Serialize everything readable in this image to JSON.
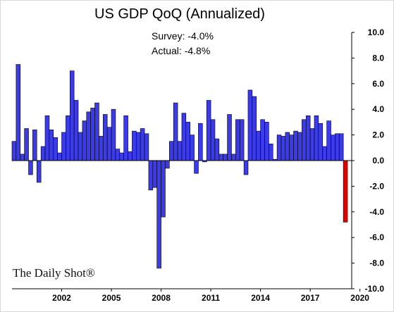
{
  "chart_data": {
    "type": "bar",
    "title": "US GDP QoQ (Annualized)",
    "annotations": {
      "survey": "Survey: -4.0%",
      "actual": "Actual:  -4.8%"
    },
    "watermark": "The Daily Shot®",
    "xlabel": "",
    "ylabel": "",
    "ylim": [
      -10,
      10
    ],
    "y_ticks": [
      "10.0",
      "8.0",
      "6.0",
      "4.0",
      "2.0",
      "0.0",
      "-2.0",
      "-4.0",
      "-6.0",
      "-8.0",
      "-10.0"
    ],
    "x_ticks": [
      {
        "label": "2002",
        "year": 2002
      },
      {
        "label": "2005",
        "year": 2005
      },
      {
        "label": "2008",
        "year": 2008
      },
      {
        "label": "2011",
        "year": 2011
      },
      {
        "label": "2014",
        "year": 2014
      },
      {
        "label": "2017",
        "year": 2017
      },
      {
        "label": "2020",
        "year": 2020
      }
    ],
    "start_year": 2000,
    "start_quarter": 1,
    "colors": {
      "positive": "#3b3be8",
      "negative": "#3b3be8",
      "latest": "#e00000",
      "edge": "#000000"
    },
    "values": [
      1.5,
      7.5,
      0.5,
      2.5,
      -1.1,
      2.4,
      -1.7,
      1.1,
      3.5,
      2.4,
      1.8,
      0.6,
      2.2,
      3.5,
      7.0,
      4.7,
      2.2,
      3.1,
      3.8,
      4.1,
      4.5,
      1.9,
      3.6,
      2.6,
      4.0,
      0.9,
      0.6,
      3.5,
      0.7,
      2.3,
      2.2,
      2.5,
      2.1,
      -2.3,
      -2.1,
      -8.4,
      -4.4,
      -0.6,
      1.5,
      4.5,
      1.5,
      3.7,
      3.0,
      2.0,
      -1.0,
      2.9,
      -0.1,
      4.7,
      3.2,
      1.7,
      0.5,
      0.5,
      3.6,
      0.5,
      3.2,
      3.2,
      -1.1,
      5.5,
      5.0,
      2.3,
      3.2,
      3.0,
      1.3,
      0.1,
      2.0,
      1.9,
      2.2,
      2.0,
      2.3,
      2.2,
      3.2,
      3.5,
      2.5,
      3.5,
      2.9,
      1.1,
      3.1,
      2.0,
      2.1,
      2.1,
      -4.8
    ]
  }
}
